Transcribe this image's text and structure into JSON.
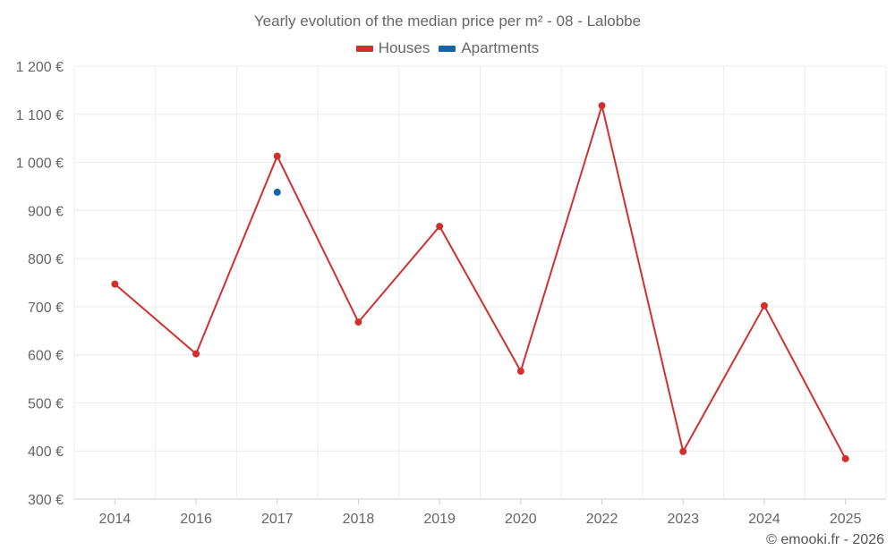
{
  "chart_data": {
    "type": "line",
    "title": "Yearly evolution of the median price per m² - 08 - Lalobbe",
    "categories": [
      "2014",
      "2016",
      "2017",
      "2018",
      "2019",
      "2020",
      "2022",
      "2023",
      "2024",
      "2025"
    ],
    "ylim": [
      300,
      1200
    ],
    "yticks": [
      300,
      400,
      500,
      600,
      700,
      800,
      900,
      1000,
      1100,
      1200
    ],
    "ytick_labels": [
      "300 €",
      "400 €",
      "500 €",
      "600 €",
      "700 €",
      "800 €",
      "900 €",
      "1 000 €",
      "1 100 €",
      "1 200 €"
    ],
    "grid": true,
    "legend_position": "top-center",
    "series": [
      {
        "name": "Houses",
        "color": "#d32f2f",
        "values": [
          747,
          602,
          1013,
          668,
          867,
          566,
          1118,
          399,
          702,
          384
        ]
      },
      {
        "name": "Apartments",
        "color": "#1565a7",
        "values": [
          null,
          null,
          938,
          null,
          null,
          null,
          null,
          null,
          null,
          null
        ]
      }
    ]
  },
  "footer": {
    "copyright": "© emooki.fr - 2026"
  }
}
